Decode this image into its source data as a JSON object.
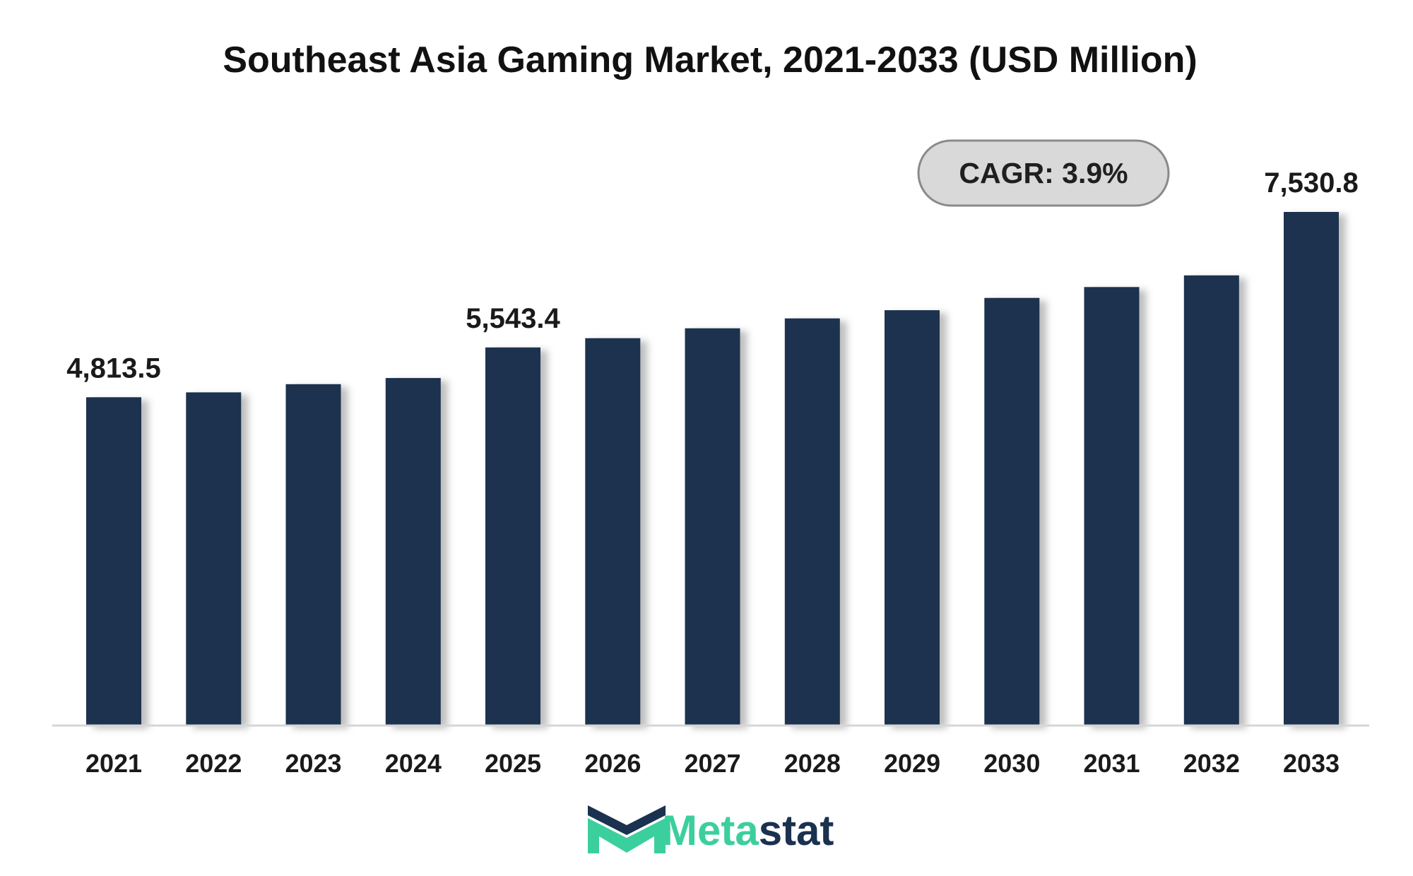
{
  "chart_data": {
    "type": "bar",
    "title": "Southeast Asia Gaming Market, 2021-2033 (USD Million)",
    "xlabel": "",
    "ylabel": "",
    "categories": [
      "2021",
      "2022",
      "2023",
      "2024",
      "2025",
      "2026",
      "2027",
      "2028",
      "2029",
      "2030",
      "2031",
      "2032",
      "2033"
    ],
    "values": [
      4813.5,
      4885,
      5005,
      5095,
      5543.4,
      5680,
      5825,
      5970,
      6090,
      6270,
      6430,
      6600,
      7530.8
    ],
    "data_labels": [
      {
        "category": "2021",
        "text": "4,813.5"
      },
      {
        "category": "2025",
        "text": "5,543.4"
      },
      {
        "category": "2033",
        "text": "7,530.8"
      }
    ],
    "ylim": [
      0,
      7800
    ],
    "grid": false,
    "legend": "none",
    "bar_color": "#1b3150",
    "annotation": "CAGR: 3.9%"
  },
  "brand": {
    "name_part1": "Meta",
    "name_part2": "stat",
    "color_teal": "#3ccf9e",
    "color_navy": "#1b3150",
    "logo_icon": "metastat-m-logo-icon"
  }
}
